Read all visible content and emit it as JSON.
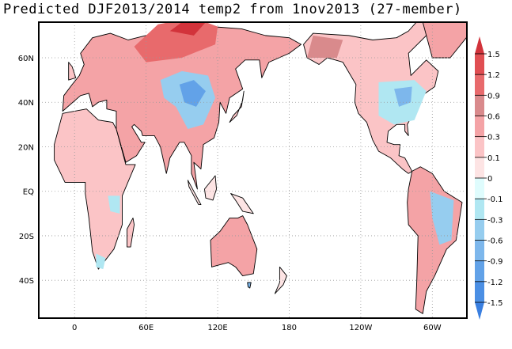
{
  "title": "Predicted DJF2013/2014 temp2 from 1nov2013 (27-member)",
  "axes": {
    "lon_ticks": [
      {
        "value": 0,
        "label": "0"
      },
      {
        "value": 60,
        "label": "60E"
      },
      {
        "value": 120,
        "label": "120E"
      },
      {
        "value": 180,
        "label": "180"
      },
      {
        "value": 240,
        "label": "120W"
      },
      {
        "value": 300,
        "label": "60W"
      }
    ],
    "lat_ticks": [
      {
        "value": 60,
        "label": "60N"
      },
      {
        "value": 40,
        "label": "40N"
      },
      {
        "value": 20,
        "label": "20N"
      },
      {
        "value": 0,
        "label": "EQ"
      },
      {
        "value": -20,
        "label": "20S"
      },
      {
        "value": -40,
        "label": "40S"
      }
    ],
    "lon_range": [
      -30,
      329
    ],
    "lat_range": [
      -57,
      76
    ]
  },
  "colorbar": {
    "labels": [
      "1.5",
      "1.2",
      "0.9",
      "0.6",
      "0.3",
      "0.1",
      "0",
      "-0.1",
      "-0.3",
      "-0.6",
      "-0.9",
      "-1.2",
      "-1.5"
    ],
    "colors": [
      "#d2333b",
      "#e04e52",
      "#e86a6c",
      "#d98a8c",
      "#f4a3a6",
      "#fbc4c6",
      "#fde4e4",
      "#dffcfd",
      "#b0e7f2",
      "#96cdef",
      "#7db7ec",
      "#62a2e8",
      "#4b8fe4",
      "#3a7fe0"
    ]
  }
}
